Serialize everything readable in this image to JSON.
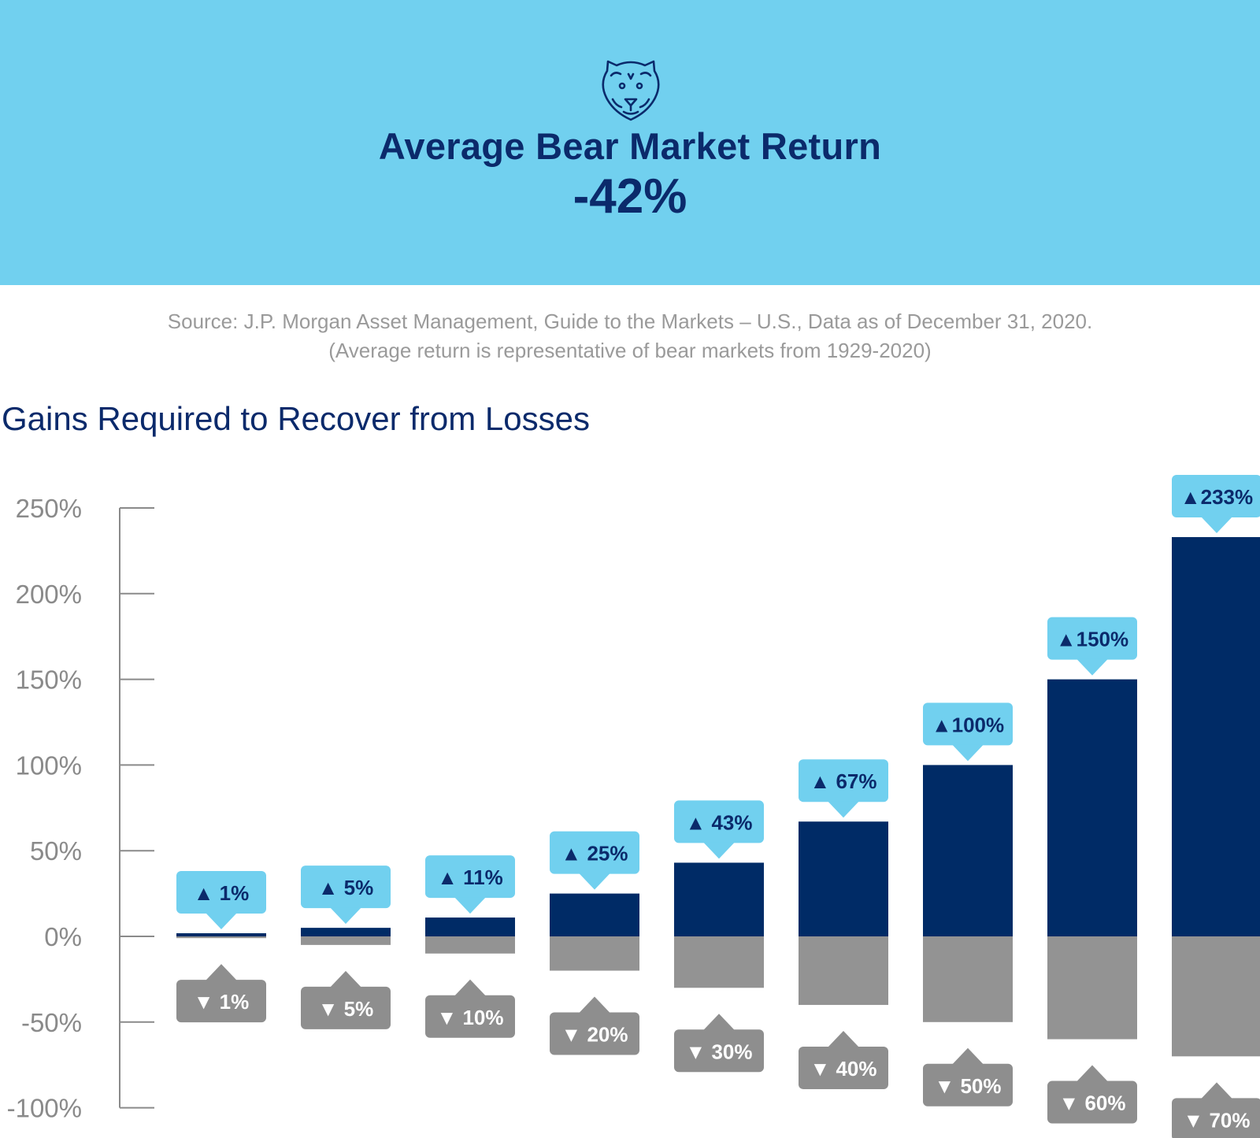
{
  "header": {
    "title": "Average Bear Market Return",
    "value": "-42%",
    "icon": "bear-icon"
  },
  "source": {
    "line1": "Source: J.P. Morgan Asset Management, Guide to the Markets – U.S., Data as of December 31, 2020.",
    "line2": "(Average return is representative of bear markets from 1929-2020)"
  },
  "colors": {
    "banner": "#71d0ef",
    "navy": "#0b2a6b",
    "gain_bar": "#002b66",
    "loss_bar": "#939393",
    "gain_label": "#71d0ef",
    "loss_label": "#8e8e8e",
    "axis_text": "#8a8a8a"
  },
  "chart_data": {
    "type": "bar",
    "title": "Gains Required to Recover from Losses",
    "xlabel": "",
    "ylabel": "",
    "ylim": [
      -100,
      250
    ],
    "yticks": [
      250,
      200,
      150,
      100,
      50,
      0,
      -50,
      -100
    ],
    "ytick_labels": [
      "250%",
      "200%",
      "150%",
      "100%",
      "50%",
      "0%",
      "-50%",
      "-100%"
    ],
    "grid": false,
    "series": [
      {
        "values": [
          1,
          5,
          11,
          25,
          43,
          67,
          100,
          150,
          233
        ],
        "labels": [
          "▲ 1%",
          "▲ 5%",
          "▲ 11%",
          "▲ 25%",
          "▲ 43%",
          "▲ 67%",
          "▲100%",
          "▲150%",
          "▲233%"
        ]
      },
      {
        "values": [
          -1,
          -5,
          -10,
          -20,
          -30,
          -40,
          -50,
          -60,
          -70
        ],
        "labels": [
          "▼ 1%",
          "▼ 5%",
          "▼ 10%",
          "▼ 20%",
          "▼ 30%",
          "▼ 40%",
          "▼ 50%",
          "▼ 60%",
          "▼ 70%"
        ]
      }
    ]
  }
}
